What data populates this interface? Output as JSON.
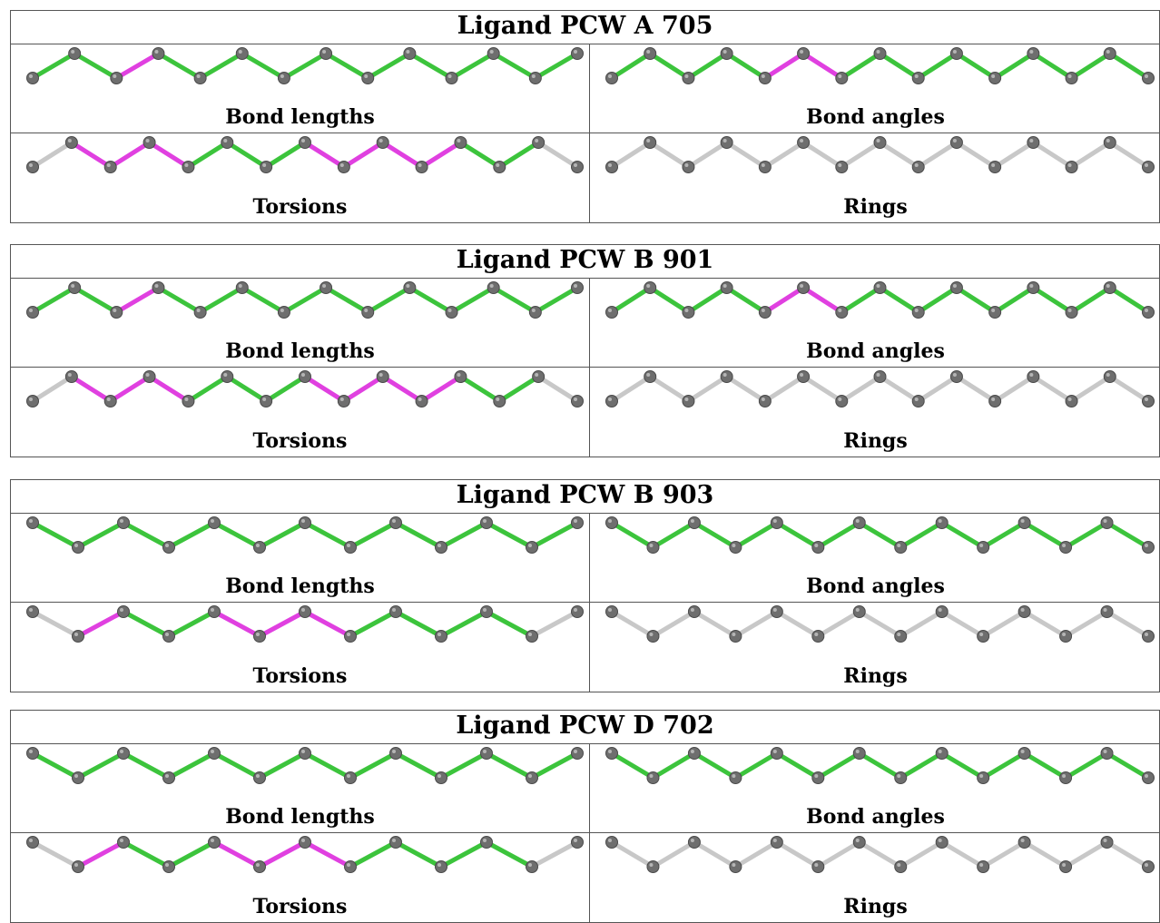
{
  "ligands": [
    {
      "title": "Ligand PCW A 705",
      "pattern": "up",
      "panels": [
        {
          "label": "Bond lengths",
          "bonds": [
            "green",
            "green",
            "magenta",
            "green",
            "green",
            "green",
            "green",
            "green",
            "green",
            "green",
            "green",
            "green",
            "green"
          ]
        },
        {
          "label": "Bond angles",
          "bonds": [
            "green",
            "green",
            "green",
            "green",
            "magenta",
            "magenta",
            "green",
            "green",
            "green",
            "green",
            "green",
            "green",
            "green",
            "green"
          ]
        },
        {
          "label": "Torsions",
          "bonds": [
            "gray",
            "magenta",
            "magenta",
            "magenta",
            "green",
            "green",
            "green",
            "magenta",
            "magenta",
            "magenta",
            "magenta",
            "green",
            "green",
            "gray"
          ]
        },
        {
          "label": "Rings",
          "bonds": [
            "gray",
            "gray",
            "gray",
            "gray",
            "gray",
            "gray",
            "gray",
            "gray",
            "gray",
            "gray",
            "gray",
            "gray",
            "gray",
            "gray"
          ]
        }
      ]
    },
    {
      "title": "Ligand PCW B 901",
      "pattern": "up",
      "panels": [
        {
          "label": "Bond lengths",
          "bonds": [
            "green",
            "green",
            "magenta",
            "green",
            "green",
            "green",
            "green",
            "green",
            "green",
            "green",
            "green",
            "green",
            "green"
          ]
        },
        {
          "label": "Bond angles",
          "bonds": [
            "green",
            "green",
            "green",
            "green",
            "magenta",
            "magenta",
            "green",
            "green",
            "green",
            "green",
            "green",
            "green",
            "green",
            "green"
          ]
        },
        {
          "label": "Torsions",
          "bonds": [
            "gray",
            "magenta",
            "magenta",
            "magenta",
            "green",
            "green",
            "green",
            "magenta",
            "magenta",
            "magenta",
            "magenta",
            "green",
            "green",
            "gray"
          ]
        },
        {
          "label": "Rings",
          "bonds": [
            "gray",
            "gray",
            "gray",
            "gray",
            "gray",
            "gray",
            "gray",
            "gray",
            "gray",
            "gray",
            "gray",
            "gray",
            "gray",
            "gray"
          ]
        }
      ]
    },
    {
      "title": "Ligand PCW B 903",
      "pattern": "down",
      "panels": [
        {
          "label": "Bond lengths",
          "bonds": [
            "green",
            "green",
            "green",
            "green",
            "green",
            "green",
            "green",
            "green",
            "green",
            "green",
            "green",
            "green"
          ]
        },
        {
          "label": "Bond angles",
          "bonds": [
            "green",
            "green",
            "green",
            "green",
            "green",
            "green",
            "green",
            "green",
            "green",
            "green",
            "green",
            "green",
            "green"
          ]
        },
        {
          "label": "Torsions",
          "bonds": [
            "gray",
            "magenta",
            "green",
            "green",
            "magenta",
            "magenta",
            "magenta",
            "green",
            "green",
            "green",
            "green",
            "gray"
          ]
        },
        {
          "label": "Rings",
          "bonds": [
            "gray",
            "gray",
            "gray",
            "gray",
            "gray",
            "gray",
            "gray",
            "gray",
            "gray",
            "gray",
            "gray",
            "gray",
            "gray"
          ]
        }
      ]
    },
    {
      "title": "Ligand PCW D 702",
      "pattern": "down",
      "panels": [
        {
          "label": "Bond lengths",
          "bonds": [
            "green",
            "green",
            "green",
            "green",
            "green",
            "green",
            "green",
            "green",
            "green",
            "green",
            "green",
            "green"
          ]
        },
        {
          "label": "Bond angles",
          "bonds": [
            "green",
            "green",
            "green",
            "green",
            "green",
            "green",
            "green",
            "green",
            "green",
            "green",
            "green",
            "green",
            "green"
          ]
        },
        {
          "label": "Torsions",
          "bonds": [
            "gray",
            "magenta",
            "green",
            "green",
            "magenta",
            "magenta",
            "magenta",
            "green",
            "green",
            "green",
            "green",
            "gray"
          ]
        },
        {
          "label": "Rings",
          "bonds": [
            "gray",
            "gray",
            "gray",
            "gray",
            "gray",
            "gray",
            "gray",
            "gray",
            "gray",
            "gray",
            "gray",
            "gray",
            "gray"
          ]
        }
      ]
    }
  ],
  "colors": {
    "green": "#3cc43c",
    "magenta": "#e040e0",
    "gray": "#c8c8c8",
    "atom": "#6e6e6e",
    "border": "#555555"
  }
}
